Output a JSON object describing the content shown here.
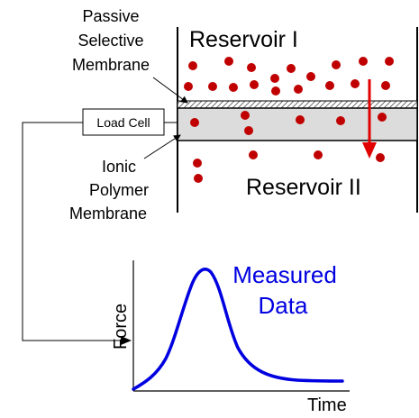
{
  "labels": {
    "passive_membrane": [
      "Passive",
      "Selective",
      "Membrane"
    ],
    "reservoir_1": "Reservoir I",
    "reservoir_2": "Reservoir II",
    "load_cell": "Load Cell",
    "ionic_membrane": [
      "Ionic",
      "Polymer",
      "Membrane"
    ],
    "measured_data": [
      "Measured",
      "Data"
    ],
    "force_axis": "Force",
    "time_axis": "Time"
  },
  "colors": {
    "particle": "#c00000",
    "arrow": "#e00000",
    "curve": "#0000e0",
    "text_blue": "#0000e0",
    "membrane_fill": "#dcdcdc",
    "line": "#000000"
  },
  "icons": {
    "flow_arrow": "arrow-down-icon",
    "signal_arrow": "arrow-right-icon"
  }
}
